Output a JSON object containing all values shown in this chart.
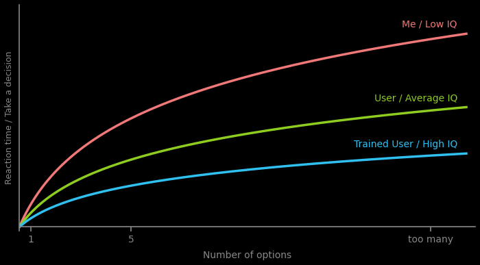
{
  "background_color": "#000000",
  "axis_color": "#888888",
  "line_low_iq_color": "#f07878",
  "line_avg_iq_color": "#8fcc20",
  "line_high_iq_color": "#30c0f0",
  "label_low_iq": "Me / Low IQ",
  "label_avg_iq": "User / Average IQ",
  "label_high_iq": "Trained User / High IQ",
  "xlabel": "Number of options",
  "ylabel": "Reaction time / Take a decision",
  "xtick_labels": [
    "1",
    "5",
    "too many"
  ],
  "low_iq_scale": 1.0,
  "avg_iq_scale": 0.62,
  "high_iq_scale": 0.38,
  "line_width": 2.5,
  "label_fontsize": 10
}
